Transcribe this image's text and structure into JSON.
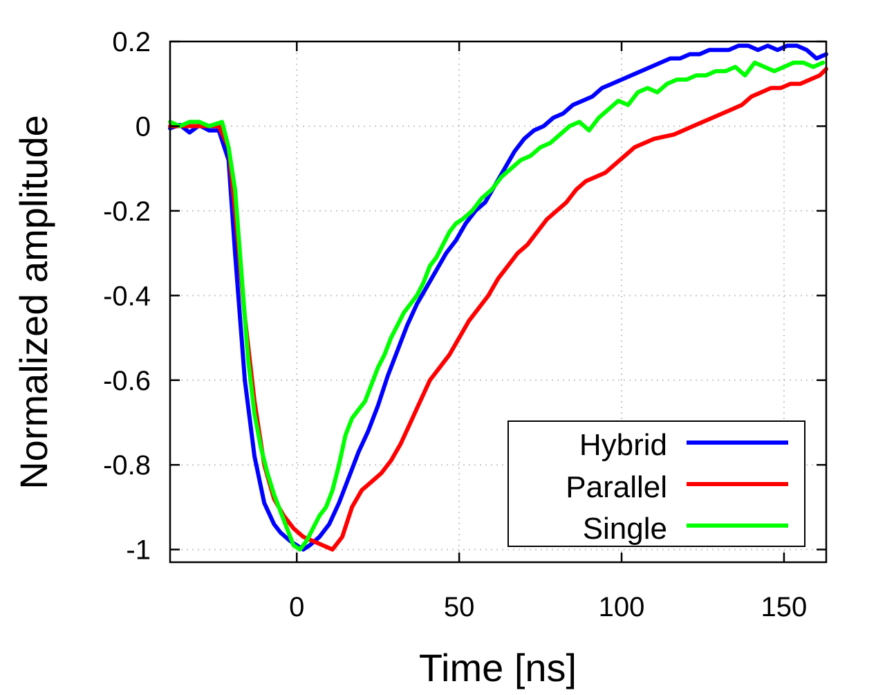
{
  "chart_data": {
    "type": "line",
    "title": "",
    "xlabel": "Time [ns]",
    "ylabel": "Normalized amplitude",
    "xlim": [
      -39,
      163
    ],
    "ylim": [
      -1.03,
      0.2
    ],
    "xticks": [
      0,
      50,
      100,
      150
    ],
    "xtick_labels": [
      "0",
      "50",
      "100",
      "150"
    ],
    "yticks": [
      0.2,
      0,
      -0.2,
      -0.4,
      -0.6,
      -0.8,
      -1
    ],
    "ytick_labels": [
      "0.2",
      "0",
      "-0.2",
      "-0.4",
      "-0.6",
      "-0.8",
      "-1"
    ],
    "grid": true,
    "legend_position": "bottom-right",
    "series": [
      {
        "name": "Hybrid",
        "color": "#0000ff",
        "x": [
          -39,
          -36,
          -33,
          -30,
          -27,
          -24,
          -21,
          -19,
          -16,
          -13,
          -10,
          -7,
          -5,
          -2,
          0,
          2,
          4,
          7,
          10,
          13,
          16,
          19,
          22,
          25,
          28,
          31,
          34,
          37,
          40,
          43,
          46,
          49,
          52,
          55,
          58,
          61,
          64,
          67,
          70,
          73,
          76,
          79,
          82,
          85,
          88,
          91,
          94,
          97,
          100,
          103,
          106,
          109,
          112,
          115,
          118,
          121,
          124,
          127,
          130,
          133,
          136,
          139,
          142,
          145,
          148,
          151,
          154,
          157,
          160,
          163
        ],
        "values": [
          -0.005,
          0.003,
          -0.015,
          0.002,
          -0.01,
          -0.01,
          -0.08,
          -0.3,
          -0.6,
          -0.78,
          -0.89,
          -0.94,
          -0.96,
          -0.98,
          -0.99,
          -1.0,
          -0.99,
          -0.97,
          -0.94,
          -0.89,
          -0.83,
          -0.77,
          -0.72,
          -0.66,
          -0.59,
          -0.53,
          -0.47,
          -0.42,
          -0.38,
          -0.34,
          -0.3,
          -0.27,
          -0.23,
          -0.2,
          -0.18,
          -0.14,
          -0.1,
          -0.06,
          -0.03,
          -0.01,
          0.0,
          0.02,
          0.03,
          0.05,
          0.06,
          0.07,
          0.09,
          0.1,
          0.11,
          0.12,
          0.13,
          0.14,
          0.15,
          0.16,
          0.16,
          0.17,
          0.17,
          0.18,
          0.18,
          0.18,
          0.19,
          0.19,
          0.18,
          0.19,
          0.18,
          0.19,
          0.19,
          0.18,
          0.16,
          0.17
        ]
      },
      {
        "name": "Parallel",
        "color": "#ff0000",
        "x": [
          -39,
          -36,
          -33,
          -30,
          -27,
          -24,
          -21,
          -19,
          -16,
          -13,
          -10,
          -7,
          -4,
          -1,
          2,
          5,
          8,
          11,
          14,
          17,
          20,
          23,
          26,
          29,
          32,
          35,
          38,
          41,
          44,
          47,
          50,
          53,
          56,
          59,
          62,
          65,
          68,
          71,
          74,
          77,
          80,
          83,
          86,
          89,
          92,
          95,
          98,
          101,
          104,
          107,
          110,
          113,
          116,
          119,
          122,
          125,
          128,
          131,
          134,
          137,
          140,
          143,
          146,
          149,
          152,
          155,
          158,
          161,
          163
        ],
        "values": [
          0.0,
          0.0,
          0.0,
          0.0,
          0.0,
          0.0,
          -0.05,
          -0.2,
          -0.45,
          -0.65,
          -0.8,
          -0.88,
          -0.92,
          -0.95,
          -0.97,
          -0.98,
          -0.99,
          -1.0,
          -0.97,
          -0.9,
          -0.86,
          -0.84,
          -0.82,
          -0.79,
          -0.75,
          -0.7,
          -0.65,
          -0.6,
          -0.57,
          -0.54,
          -0.5,
          -0.46,
          -0.43,
          -0.4,
          -0.36,
          -0.33,
          -0.3,
          -0.28,
          -0.25,
          -0.22,
          -0.2,
          -0.18,
          -0.15,
          -0.13,
          -0.12,
          -0.11,
          -0.09,
          -0.07,
          -0.05,
          -0.04,
          -0.03,
          -0.025,
          -0.02,
          -0.01,
          0.0,
          0.01,
          0.02,
          0.03,
          0.04,
          0.05,
          0.07,
          0.08,
          0.09,
          0.09,
          0.1,
          0.1,
          0.11,
          0.12,
          0.135
        ]
      },
      {
        "name": "Single",
        "color": "#00ff00",
        "x": [
          -39,
          -36,
          -33,
          -30,
          -27,
          -25,
          -23,
          -21,
          -19,
          -17,
          -15,
          -13,
          -11,
          -9,
          -7,
          -5,
          -3,
          -1,
          1,
          3,
          5,
          7,
          9,
          11,
          13,
          15,
          17,
          19,
          21,
          23,
          25,
          27,
          29,
          31,
          33,
          35,
          37,
          39,
          41,
          43,
          45,
          47,
          49,
          51,
          54,
          57,
          60,
          63,
          66,
          69,
          72,
          75,
          78,
          81,
          84,
          87,
          90,
          93,
          96,
          99,
          102,
          105,
          108,
          111,
          114,
          117,
          120,
          123,
          126,
          129,
          132,
          135,
          138,
          141,
          144,
          147,
          150,
          153,
          156,
          159,
          162
        ],
        "values": [
          0.01,
          0.0,
          0.01,
          0.01,
          0.0,
          0.005,
          0.01,
          -0.05,
          -0.15,
          -0.35,
          -0.55,
          -0.68,
          -0.76,
          -0.82,
          -0.87,
          -0.91,
          -0.95,
          -0.99,
          -1.0,
          -0.98,
          -0.95,
          -0.92,
          -0.9,
          -0.86,
          -0.8,
          -0.73,
          -0.69,
          -0.67,
          -0.65,
          -0.61,
          -0.57,
          -0.54,
          -0.5,
          -0.47,
          -0.44,
          -0.42,
          -0.4,
          -0.37,
          -0.33,
          -0.31,
          -0.28,
          -0.25,
          -0.23,
          -0.22,
          -0.2,
          -0.17,
          -0.15,
          -0.12,
          -0.1,
          -0.08,
          -0.07,
          -0.05,
          -0.04,
          -0.02,
          0.0,
          0.01,
          -0.01,
          0.02,
          0.04,
          0.06,
          0.05,
          0.08,
          0.09,
          0.08,
          0.1,
          0.11,
          0.11,
          0.12,
          0.12,
          0.13,
          0.13,
          0.14,
          0.12,
          0.15,
          0.14,
          0.13,
          0.14,
          0.15,
          0.15,
          0.14,
          0.15
        ]
      }
    ]
  }
}
